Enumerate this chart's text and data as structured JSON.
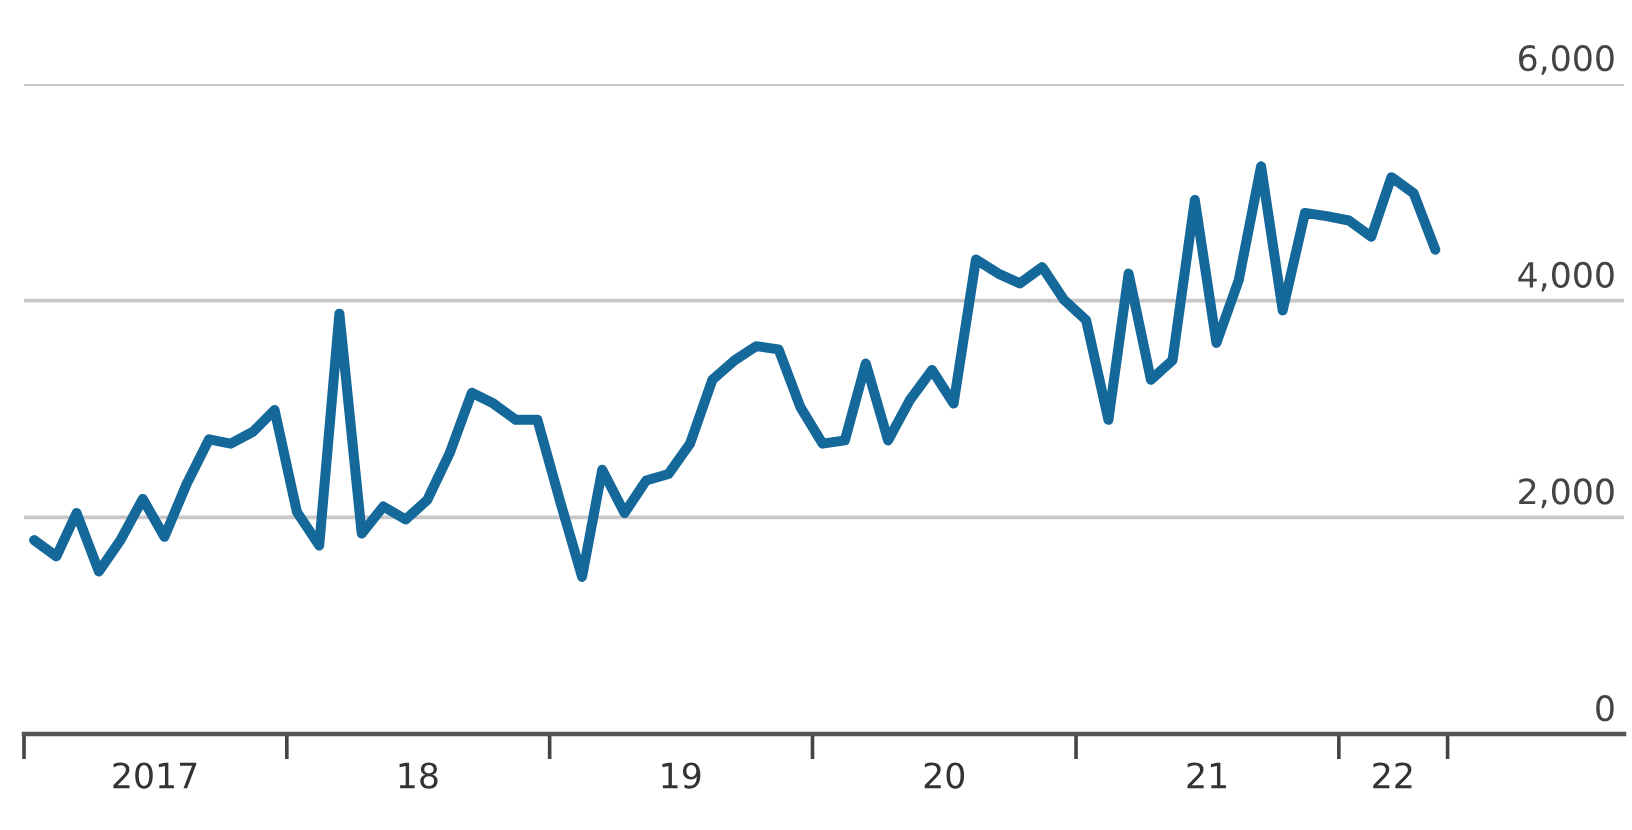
{
  "chart_data": {
    "type": "line",
    "x": [
      "2017-01-15",
      "2017-02-15",
      "2017-03-15",
      "2017-04-15",
      "2017-05-15",
      "2017-06-15",
      "2017-07-15",
      "2017-08-15",
      "2017-09-15",
      "2017-10-15",
      "2017-11-15",
      "2017-12-15",
      "2018-01-15",
      "2018-02-15",
      "2018-03-15",
      "2018-04-15",
      "2018-05-15",
      "2018-06-15",
      "2018-07-15",
      "2018-08-15",
      "2018-09-15",
      "2018-10-15",
      "2018-11-15",
      "2018-12-15",
      "2019-01-15",
      "2019-02-15",
      "2019-03-15",
      "2019-04-15",
      "2019-05-15",
      "2019-06-15",
      "2019-07-15",
      "2019-08-15",
      "2019-09-15",
      "2019-10-15",
      "2019-11-15",
      "2019-12-15",
      "2020-01-15",
      "2020-02-15",
      "2020-03-15",
      "2020-04-15",
      "2020-05-15",
      "2020-06-15",
      "2020-07-15",
      "2020-08-15",
      "2020-09-15",
      "2020-10-15",
      "2020-11-15",
      "2020-12-15",
      "2021-01-15",
      "2021-02-15",
      "2021-03-15",
      "2021-04-15",
      "2021-05-15",
      "2021-06-15",
      "2021-07-15",
      "2021-08-15",
      "2021-09-15",
      "2021-10-15",
      "2021-11-15",
      "2021-12-15",
      "2022-01-15",
      "2022-02-15",
      "2022-03-15",
      "2022-04-15",
      "2022-05-15"
    ],
    "series": [
      {
        "color": "#15689a",
        "values": [
          1790,
          1640,
          2040,
          1500,
          1790,
          2170,
          1820,
          2310,
          2720,
          2680,
          2790,
          2990,
          2050,
          1740,
          3880,
          1850,
          2100,
          1980,
          2160,
          2590,
          3150,
          3050,
          2900,
          2900,
          2160,
          1450,
          2440,
          2040,
          2340,
          2400,
          2680,
          3270,
          3450,
          3580,
          3550,
          3020,
          2680,
          2710,
          3420,
          2710,
          3080,
          3360,
          3050,
          4380,
          4250,
          4160,
          4310,
          4010,
          3820,
          2900,
          4250,
          3270,
          3450,
          4930,
          3610,
          4190,
          5240,
          3910,
          4810,
          4780,
          4740,
          4590,
          5140,
          4990,
          4470
        ]
      }
    ],
    "xlim": [
      "2017-01-01",
      "2023-02-01"
    ],
    "xticks": [
      {
        "value": "2017-01-01",
        "label": null
      },
      {
        "value": "2017-07-02",
        "label": "2017"
      },
      {
        "value": "2018-01-01",
        "label": null
      },
      {
        "value": "2018-07-02",
        "label": "18"
      },
      {
        "value": "2019-01-01",
        "label": null
      },
      {
        "value": "2019-07-02",
        "label": "19"
      },
      {
        "value": "2020-01-01",
        "label": null
      },
      {
        "value": "2020-07-02",
        "label": "20"
      },
      {
        "value": "2021-01-01",
        "label": null
      },
      {
        "value": "2021-07-02",
        "label": "21"
      },
      {
        "value": "2022-01-01",
        "label": null
      },
      {
        "value": "2022-03-17",
        "label": "22"
      },
      {
        "value": "2022-06-01",
        "label": null
      }
    ],
    "ylim": [
      0,
      6000
    ],
    "yticks": [
      {
        "value": 0,
        "label": "0"
      },
      {
        "value": 2000,
        "label": "2,000"
      },
      {
        "value": 4000,
        "label": "4,000"
      },
      {
        "value": 6000,
        "label": "6,000"
      }
    ],
    "grid": "y",
    "marker": "none",
    "line_style": "solid"
  }
}
